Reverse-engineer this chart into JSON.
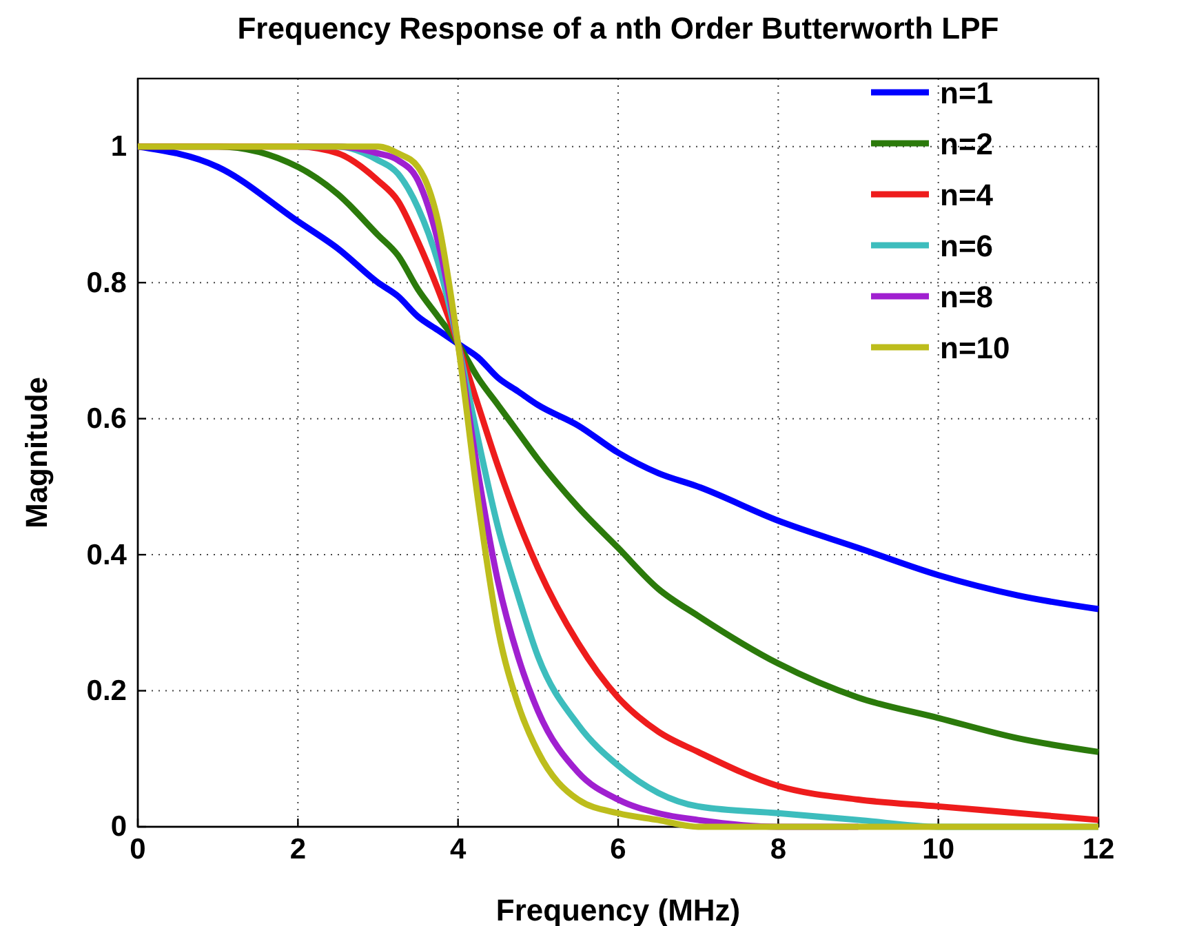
{
  "chart_data": {
    "type": "line",
    "title": "Frequency Response of a nth Order Butterworth LPF",
    "xlabel": "Frequency (MHz)",
    "ylabel": "Magnitude",
    "x": [
      0,
      1,
      2,
      2.5,
      3,
      3.25,
      3.5,
      3.75,
      4,
      4.25,
      4.5,
      4.75,
      5,
      5.5,
      6,
      6.5,
      7,
      8,
      9,
      10,
      11,
      12
    ],
    "series": [
      {
        "name": "n=1",
        "color": "#0000ff",
        "values": [
          1,
          0.97,
          0.89,
          0.85,
          0.8,
          0.78,
          0.75,
          0.73,
          0.71,
          0.69,
          0.66,
          0.64,
          0.62,
          0.59,
          0.55,
          0.52,
          0.5,
          0.45,
          0.41,
          0.37,
          0.34,
          0.32
        ]
      },
      {
        "name": "n=2",
        "color": "#2b7a0b",
        "values": [
          1,
          1,
          0.97,
          0.93,
          0.87,
          0.84,
          0.79,
          0.75,
          0.71,
          0.66,
          0.62,
          0.58,
          0.54,
          0.47,
          0.41,
          0.35,
          0.31,
          0.24,
          0.19,
          0.16,
          0.13,
          0.11
        ]
      },
      {
        "name": "n=4",
        "color": "#ee1c1c",
        "values": [
          1,
          1,
          1,
          0.99,
          0.95,
          0.92,
          0.86,
          0.79,
          0.71,
          0.62,
          0.53,
          0.45,
          0.38,
          0.27,
          0.19,
          0.14,
          0.11,
          0.06,
          0.04,
          0.03,
          0.02,
          0.01
        ]
      },
      {
        "name": "n=6",
        "color": "#3dbdbd",
        "values": [
          null,
          null,
          1,
          1,
          0.98,
          0.96,
          0.91,
          0.83,
          0.71,
          0.57,
          0.44,
          0.34,
          0.25,
          0.15,
          0.09,
          0.05,
          0.03,
          0.02,
          0.01,
          0,
          0,
          0
        ]
      },
      {
        "name": "n=8",
        "color": "#a020d0",
        "values": [
          null,
          null,
          1,
          1,
          0.99,
          0.98,
          0.95,
          0.86,
          0.71,
          0.52,
          0.36,
          0.25,
          0.17,
          0.08,
          0.04,
          0.02,
          0.01,
          0,
          0,
          null,
          null,
          null
        ]
      },
      {
        "name": "n=10",
        "color": "#bdbd1c",
        "values": [
          1,
          1,
          1,
          1,
          1,
          0.99,
          0.97,
          0.89,
          0.71,
          0.48,
          0.29,
          0.18,
          0.11,
          0.04,
          0.02,
          0.01,
          0,
          0,
          0,
          0,
          0,
          0
        ]
      }
    ],
    "xlim": [
      0,
      12
    ],
    "xticks": [
      0,
      2,
      4,
      6,
      8,
      10,
      12
    ],
    "ylim": [
      0,
      1.1
    ],
    "yticks": [
      0,
      0.2,
      0.4,
      0.6,
      0.8,
      1
    ],
    "grid": true,
    "legend": "top right",
    "line_style": "solid",
    "marker": "none"
  }
}
